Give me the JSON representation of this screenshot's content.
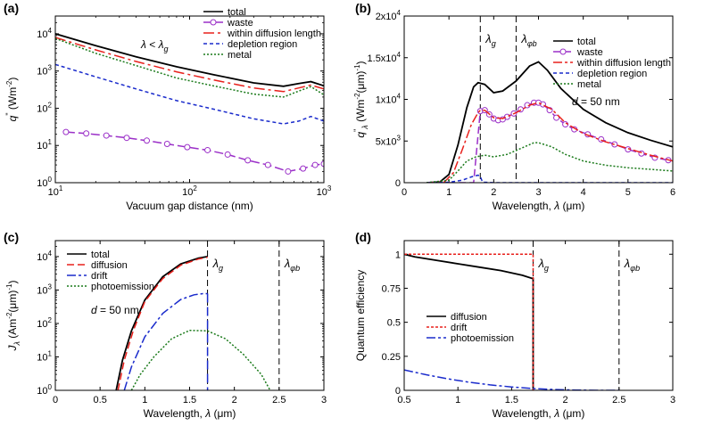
{
  "chart_data": [
    {
      "panel": "(a)",
      "type": "line",
      "xscale": "log",
      "yscale": "log",
      "xlim": [
        10,
        1000
      ],
      "ylim": [
        1,
        30000
      ],
      "xticks": [
        {
          "v": 10,
          "b": "10",
          "e": "1"
        },
        {
          "v": 100,
          "b": "10",
          "e": "2"
        },
        {
          "v": 1000,
          "b": "10",
          "e": "3"
        }
      ],
      "yticks": [
        {
          "v": 1,
          "b": "10",
          "e": "0"
        },
        {
          "v": 10,
          "b": "10",
          "e": "1"
        },
        {
          "v": 100,
          "b": "10",
          "e": "2"
        },
        {
          "v": 1000,
          "b": "10",
          "e": "3"
        },
        {
          "v": 10000,
          "b": "10",
          "e": "4"
        }
      ],
      "xlabel": "Vacuum gap distance (nm)",
      "ylabel": {
        "base": "q",
        "sup": "\"",
        "unit": " (Wm",
        "exp": "-2",
        "close": ")"
      },
      "annotation": {
        "main": "λ < λ",
        "sub": "g"
      },
      "legend_position": "top-right",
      "series": [
        {
          "name": "total",
          "color": "#000000",
          "dash": "",
          "marker": false,
          "x": [
            10,
            20,
            40,
            80,
            150,
            300,
            500,
            650,
            800,
            1000
          ],
          "y": [
            10000,
            4800,
            2400,
            1300,
            800,
            480,
            390,
            460,
            520,
            400
          ]
        },
        {
          "name": "waste",
          "color": "#9b30c8",
          "dash": "10 4",
          "marker": true,
          "x": [
            12,
            17,
            24,
            34,
            48,
            68,
            96,
            136,
            192,
            271,
            383,
            541,
            700,
            860,
            1000
          ],
          "y": [
            23,
            21,
            18.5,
            16,
            13.5,
            11,
            9,
            7.5,
            5.7,
            4,
            3,
            2,
            2.4,
            3,
            3.2
          ]
        },
        {
          "name": "within diffusion length",
          "color": "#e8201c",
          "dash": "12 4 3 4",
          "marker": false,
          "x": [
            10,
            20,
            40,
            80,
            150,
            300,
            500,
            650,
            800,
            1000
          ],
          "y": [
            8000,
            3700,
            1800,
            950,
            580,
            350,
            280,
            350,
            420,
            330
          ]
        },
        {
          "name": "depletion region",
          "color": "#1a2bcc",
          "dash": "4 3",
          "marker": false,
          "x": [
            10,
            20,
            40,
            80,
            150,
            300,
            500,
            650,
            800,
            1000
          ],
          "y": [
            1500,
            700,
            330,
            160,
            95,
            52,
            38,
            45,
            60,
            45
          ]
        },
        {
          "name": "metal",
          "color": "#1a7a1a",
          "dash": "2 2",
          "marker": false,
          "x": [
            10,
            20,
            40,
            80,
            150,
            300,
            500,
            650,
            800,
            1000
          ],
          "y": [
            7500,
            3000,
            1400,
            650,
            400,
            240,
            200,
            290,
            380,
            230
          ]
        }
      ]
    },
    {
      "panel": "(b)",
      "type": "line",
      "xscale": "linear",
      "yscale": "linear",
      "xlim": [
        0,
        6
      ],
      "ylim": [
        0,
        20000
      ],
      "xticks": [
        0,
        1,
        2,
        3,
        4,
        5,
        6
      ],
      "yticks": [
        {
          "v": 0,
          "t": "0"
        },
        {
          "v": 5000,
          "t": "5x10",
          "e": "3"
        },
        {
          "v": 10000,
          "t": "1x10",
          "e": "4"
        },
        {
          "v": 15000,
          "t": "1.5x10",
          "e": "4"
        },
        {
          "v": 20000,
          "t": "2x10",
          "e": "4"
        }
      ],
      "xlabel": "Wavelength, λ (μm)",
      "ylabel": {
        "base": "q",
        "sup": "\"",
        "sub": "λ",
        "unit": " (Wm",
        "exp": "-2",
        "close": "(μm)",
        "exp2": "-1",
        "close2": ")"
      },
      "vlines": [
        {
          "x": 1.7,
          "label": "λ",
          "sub": "g"
        },
        {
          "x": 2.5,
          "label": "λ",
          "sub": "φb"
        }
      ],
      "annotation": {
        "main": "d = 50 nm"
      },
      "legend_position": "top-right",
      "series": [
        {
          "name": "total",
          "color": "#000000",
          "dash": "",
          "marker": false,
          "x": [
            0.5,
            0.8,
            1.0,
            1.2,
            1.4,
            1.55,
            1.65,
            1.8,
            2.0,
            2.2,
            2.5,
            2.8,
            3.0,
            3.2,
            3.5,
            4.0,
            4.5,
            5.0,
            5.5,
            6.0
          ],
          "y": [
            0,
            100,
            1000,
            4500,
            9000,
            11500,
            12000,
            11800,
            10800,
            11000,
            12200,
            14000,
            14500,
            13500,
            11300,
            8800,
            7200,
            6000,
            5100,
            4300
          ]
        },
        {
          "name": "waste",
          "color": "#9b30c8",
          "dash": "8 4",
          "marker": true,
          "x": [
            0.5,
            0.65,
            0.8,
            0.95,
            1.1,
            1.25,
            1.4,
            1.55,
            1.7,
            1.8,
            1.9,
            2.0,
            2.1,
            2.2,
            2.3,
            2.45,
            2.6,
            2.75,
            2.9,
            3.0,
            3.1,
            3.25,
            3.4,
            3.6,
            3.8,
            4.1,
            4.4,
            4.7,
            5.0,
            5.3,
            5.6,
            5.9
          ],
          "y": [
            0,
            0,
            0,
            0,
            0,
            0,
            0,
            0,
            8600,
            8700,
            8200,
            7700,
            7500,
            7600,
            7900,
            8300,
            8800,
            9300,
            9600,
            9600,
            9400,
            8700,
            7800,
            7000,
            6400,
            5800,
            5200,
            4600,
            4000,
            3500,
            3000,
            2700
          ]
        },
        {
          "name": "within diffusion length",
          "color": "#e8201c",
          "dash": "10 3 3 3",
          "marker": false,
          "x": [
            0.5,
            0.9,
            1.1,
            1.3,
            1.5,
            1.65,
            1.7,
            1.8,
            2.0,
            2.2,
            2.5,
            2.8,
            3.0,
            3.3,
            3.6,
            4.0,
            4.5,
            5.0,
            5.5,
            6.0
          ],
          "y": [
            0,
            100,
            1200,
            4000,
            7000,
            8400,
            8700,
            8700,
            7800,
            7700,
            8400,
            9300,
            9600,
            8800,
            7200,
            5900,
            4900,
            4100,
            3300,
            2600
          ]
        },
        {
          "name": "depletion region",
          "color": "#1a2bcc",
          "dash": "4 3",
          "marker": false,
          "x": [
            0.5,
            1.0,
            1.3,
            1.5,
            1.65,
            1.7,
            1.75,
            2.0,
            6.0
          ],
          "y": [
            0,
            50,
            300,
            700,
            900,
            750,
            60,
            0,
            0
          ]
        },
        {
          "name": "metal",
          "color": "#1a7a1a",
          "dash": "2 2",
          "marker": false,
          "x": [
            0.5,
            1.0,
            1.2,
            1.4,
            1.6,
            1.8,
            2.0,
            2.3,
            2.6,
            2.9,
            3.0,
            3.3,
            3.6,
            4.0,
            4.5,
            5.0,
            5.5,
            6.0
          ],
          "y": [
            0,
            300,
            1400,
            2600,
            3100,
            3300,
            3100,
            3400,
            4100,
            4800,
            4800,
            4300,
            3400,
            2600,
            2100,
            1800,
            1600,
            1400
          ]
        }
      ]
    },
    {
      "panel": "(c)",
      "type": "line",
      "xscale": "linear",
      "yscale": "log",
      "xlim": [
        0,
        3
      ],
      "ylim": [
        1,
        30000
      ],
      "xticks": [
        0,
        0.5,
        1,
        1.5,
        2,
        2.5,
        3
      ],
      "yticks": [
        {
          "v": 1,
          "b": "10",
          "e": "0"
        },
        {
          "v": 10,
          "b": "10",
          "e": "1"
        },
        {
          "v": 100,
          "b": "10",
          "e": "2"
        },
        {
          "v": 1000,
          "b": "10",
          "e": "3"
        },
        {
          "v": 10000,
          "b": "10",
          "e": "4"
        }
      ],
      "xlabel": "Wavelength, λ (μm)",
      "ylabel": {
        "base": "J",
        "sub": "λ",
        "unit": " (Am",
        "exp": "-2",
        "close": "(μm)",
        "exp2": "-1",
        "close2": ")"
      },
      "vlines": [
        {
          "x": 1.7,
          "label": "λ",
          "sub": "g"
        },
        {
          "x": 2.5,
          "label": "λ",
          "sub": "φb"
        }
      ],
      "annotation": {
        "main": "d = 50 nm"
      },
      "legend_position": "top-left",
      "series": [
        {
          "name": "total",
          "color": "#000000",
          "dash": "",
          "marker": false,
          "x": [
            0.68,
            0.75,
            0.85,
            1.0,
            1.2,
            1.4,
            1.6,
            1.7
          ],
          "y": [
            1,
            8,
            60,
            500,
            2500,
            6000,
            9000,
            10000
          ]
        },
        {
          "name": "diffusion",
          "color": "#e8201c",
          "dash": "8 4",
          "marker": false,
          "x": [
            0.7,
            0.77,
            0.87,
            1.0,
            1.2,
            1.4,
            1.6,
            1.7
          ],
          "y": [
            1,
            8,
            60,
            450,
            2200,
            5500,
            8500,
            9500
          ]
        },
        {
          "name": "drift",
          "color": "#1a2bcc",
          "dash": "10 3 3 3",
          "marker": false,
          "x": [
            0.77,
            0.85,
            1.0,
            1.2,
            1.4,
            1.55,
            1.65,
            1.7
          ],
          "y": [
            1,
            5,
            40,
            200,
            520,
            720,
            780,
            780
          ]
        },
        {
          "name": "photoemission",
          "color": "#1a7a1a",
          "dash": "2 2",
          "marker": false,
          "x": [
            0.85,
            0.95,
            1.1,
            1.3,
            1.5,
            1.7,
            1.9,
            2.1,
            2.3,
            2.4
          ],
          "y": [
            1,
            3,
            10,
            35,
            62,
            60,
            35,
            12,
            3,
            1
          ]
        }
      ],
      "extra_lines": [
        {
          "color": "#1a2bcc",
          "dash": "10 5",
          "x": [
            1.7,
            1.7
          ],
          "y": [
            780,
            1
          ]
        }
      ]
    },
    {
      "panel": "(d)",
      "type": "line",
      "xscale": "linear",
      "yscale": "linear",
      "xlim": [
        0.5,
        3
      ],
      "ylim": [
        0,
        1.1
      ],
      "xticks": [
        0.5,
        1,
        1.5,
        2,
        2.5,
        3
      ],
      "yticks": [
        {
          "v": 0,
          "t": "0"
        },
        {
          "v": 0.25,
          "t": "0.25"
        },
        {
          "v": 0.5,
          "t": "0.5"
        },
        {
          "v": 0.75,
          "t": "0.75"
        },
        {
          "v": 1,
          "t": "1"
        }
      ],
      "xlabel": "Wavelength, λ (μm)",
      "ylabel": {
        "text": "Quantum efficiency"
      },
      "vlines": [
        {
          "x": 1.7,
          "label": "λ",
          "sub": "g"
        },
        {
          "x": 2.5,
          "label": "λ",
          "sub": "φb"
        }
      ],
      "legend_position": "middle-left",
      "series": [
        {
          "name": "diffusion",
          "color": "#000000",
          "dash": "",
          "marker": false,
          "x": [
            0.5,
            0.6,
            0.8,
            1.0,
            1.2,
            1.4,
            1.6,
            1.7,
            1.7
          ],
          "y": [
            1.0,
            0.98,
            0.955,
            0.93,
            0.905,
            0.88,
            0.845,
            0.82,
            0
          ]
        },
        {
          "name": "drift",
          "color": "#e8201c",
          "dash": "3 2",
          "marker": false,
          "x": [
            0.5,
            1.7,
            1.7
          ],
          "y": [
            1.0,
            1.0,
            0
          ]
        },
        {
          "name": "photoemission",
          "color": "#1a2bcc",
          "dash": "10 3 3 3",
          "marker": false,
          "x": [
            0.5,
            0.7,
            0.9,
            1.1,
            1.3,
            1.5,
            1.7,
            1.9,
            2.1,
            2.3,
            2.5
          ],
          "y": [
            0.15,
            0.115,
            0.085,
            0.06,
            0.04,
            0.025,
            0.013,
            0.006,
            0.002,
            0.0,
            0.0
          ]
        }
      ]
    }
  ]
}
